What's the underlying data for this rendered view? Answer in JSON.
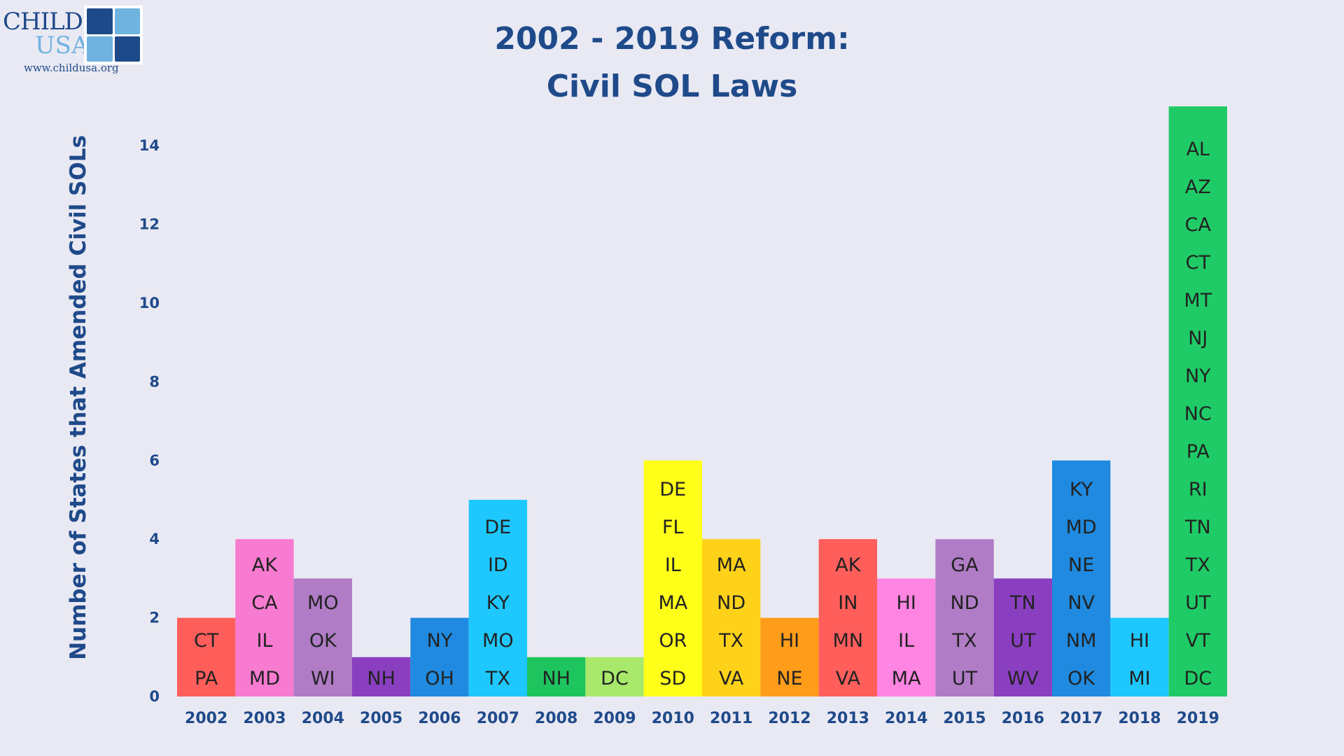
{
  "logo": {
    "line1": "CHILD",
    "line2": "USA",
    "url": "www.childusa.org",
    "tile_colors": [
      "#1f4a8a",
      "#6fb3e0",
      "#6fb3e0",
      "#1f4a8a"
    ]
  },
  "chart_data": {
    "type": "bar",
    "title": "2002 - 2019 Reform:",
    "subtitle": "Civil SOL Laws",
    "xlabel": "",
    "ylabel": "Number of States that Amended Civil SOLs",
    "ylim": [
      0,
      14
    ],
    "yticks": [
      0,
      2,
      4,
      6,
      8,
      10,
      12,
      14
    ],
    "grid": false,
    "legend": "none",
    "categories": [
      "2002",
      "2003",
      "2004",
      "2005",
      "2006",
      "2007",
      "2008",
      "2009",
      "2010",
      "2011",
      "2012",
      "2013",
      "2014",
      "2015",
      "2016",
      "2017",
      "2018",
      "2019"
    ],
    "values": [
      2,
      4,
      3,
      1,
      2,
      5,
      1,
      1,
      6,
      4,
      2,
      4,
      3,
      4,
      3,
      6,
      2,
      15
    ],
    "colors": [
      "#ff5e5b",
      "#f77bd0",
      "#b07cc6",
      "#8a3fc0",
      "#1f8ae0",
      "#1ec8ff",
      "#1ec45e",
      "#a8e86a",
      "#ffff1a",
      "#ffd21a",
      "#ff9c1a",
      "#ff5e5b",
      "#ff85e2",
      "#b07cc6",
      "#8a3fc0",
      "#1f8ae0",
      "#1ec8ff",
      "#1fcb66"
    ],
    "labels": [
      [
        "CT",
        "PA"
      ],
      [
        "AK",
        "CA",
        "IL",
        "MD"
      ],
      [
        "MO",
        "OK",
        "WI"
      ],
      [
        "NH"
      ],
      [
        "NY",
        "OH"
      ],
      [
        "DE",
        "ID",
        "KY",
        "MO",
        "TX"
      ],
      [
        "NH"
      ],
      [
        "DC"
      ],
      [
        "DE",
        "FL",
        "IL",
        "MA",
        "OR",
        "SD"
      ],
      [
        "MA",
        "ND",
        "TX",
        "VA"
      ],
      [
        "HI",
        "NE"
      ],
      [
        "AK",
        "IN",
        "MN",
        "VA"
      ],
      [
        "HI",
        "IL",
        "MA"
      ],
      [
        "GA",
        "ND",
        "TX",
        "UT"
      ],
      [
        "TN",
        "UT",
        "WV"
      ],
      [
        "KY",
        "MD",
        "NE",
        "NV",
        "NM",
        "OK"
      ],
      [
        "HI",
        "MI"
      ],
      [
        "AL",
        "AZ",
        "CA",
        "CT",
        "MT",
        "NJ",
        "NY",
        "NC",
        "PA",
        "RI",
        "TN",
        "TX",
        "UT",
        "VT",
        "DC"
      ]
    ],
    "colors_axis": {
      "text": "#1f4a8a",
      "bar_label": "#222222"
    }
  }
}
